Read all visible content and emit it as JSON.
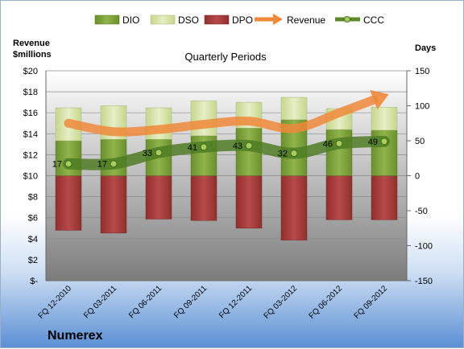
{
  "chart_data": {
    "type": "bar",
    "title": "Quarterly Periods",
    "company": "Numerex",
    "left_axis_label": [
      "Revenue",
      "$millions"
    ],
    "right_axis_label": "Days",
    "left_ticks": [
      "$20",
      "$18",
      "$16",
      "$14",
      "$12",
      "$10",
      "$8",
      "$6",
      "$4",
      "$2",
      "$-"
    ],
    "left_ylim": [
      0,
      20
    ],
    "right_ylim": [
      -150,
      150
    ],
    "right_ticks": [
      "150",
      "100",
      "50",
      "0",
      "-50",
      "-100",
      "-150"
    ],
    "categories": [
      "FQ 12-2010",
      "FQ 03-2011",
      "FQ 06-2011",
      "FQ 09-2011",
      "FQ 12-2011",
      "FQ 03-2012",
      "FQ 06-2012",
      "FQ 09-2012"
    ],
    "legend_placement": "top",
    "series": [
      {
        "name": "DIO",
        "type": "stacked-bar",
        "axis": "days",
        "color": "#7fa53d",
        "values": [
          50,
          52,
          52,
          57,
          68,
          80,
          66,
          65
        ]
      },
      {
        "name": "DSO",
        "type": "stacked-bar",
        "axis": "days",
        "color": "#d8e4a8",
        "values": [
          47,
          48,
          45,
          50,
          37,
          32,
          30,
          33
        ]
      },
      {
        "name": "DPO",
        "type": "bar",
        "axis": "days",
        "color": "#a83d3d",
        "values": [
          -78,
          -82,
          -62,
          -64,
          -75,
          -92,
          -63,
          -63
        ]
      },
      {
        "name": "Revenue",
        "type": "line",
        "axis": "revenue",
        "color": "#f0883a",
        "values": [
          15.0,
          14.2,
          14.4,
          14.9,
          15.2,
          14.5,
          16.0,
          17.6
        ]
      },
      {
        "name": "CCC",
        "type": "line",
        "axis": "days",
        "color": "#5a8a2a",
        "values": [
          17,
          17,
          33,
          41,
          43,
          32,
          46,
          49
        ],
        "labels": [
          "17",
          "17",
          "33",
          "41",
          "43",
          "32",
          "46",
          "49"
        ]
      }
    ]
  }
}
